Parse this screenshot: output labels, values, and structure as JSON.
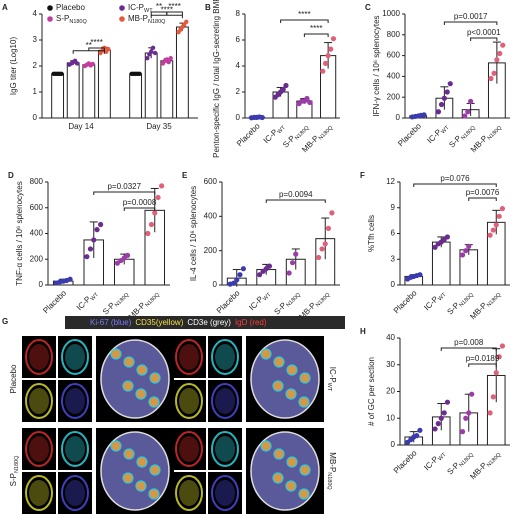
{
  "chart_data": [
    {
      "type": "grouped-bar",
      "panel": "A",
      "ylabel": "IgG titer (Log10)",
      "categories": [
        "Day 14",
        "Day 35"
      ],
      "ylim": [
        0,
        4
      ],
      "yticks": [
        0,
        1,
        2,
        3,
        4
      ],
      "series": [
        {
          "name": "Placebo",
          "sub": null,
          "color": "#111111",
          "values": [
            1.7,
            1.7
          ],
          "errors": [
            0.02,
            0.02
          ],
          "points": [
            [
              1.7,
              1.7,
              1.7,
              1.7,
              1.7
            ],
            [
              1.7,
              1.7,
              1.7,
              1.7,
              1.7
            ]
          ]
        },
        {
          "name": "IC-P",
          "sub": "WT",
          "color": "#6a2c91",
          "values": [
            2.12,
            2.5
          ],
          "errors": [
            0.08,
            0.2
          ],
          "points": [
            [
              2.05,
              2.1,
              2.15,
              2.2,
              2.1
            ],
            [
              2.3,
              2.45,
              2.55,
              2.7,
              2.5
            ]
          ]
        },
        {
          "name": "S-P",
          "sub": "N180Q",
          "color": "#c43ca0",
          "values": [
            2.05,
            2.2
          ],
          "errors": [
            0.05,
            0.08
          ],
          "points": [
            [
              2.0,
              2.05,
              2.1,
              2.02,
              2.08
            ],
            [
              2.1,
              2.2,
              2.25,
              2.15,
              2.3
            ]
          ]
        },
        {
          "name": "MB-P",
          "sub": "N180Q",
          "color": "#e8583a",
          "values": [
            2.6,
            3.5
          ],
          "errors": [
            0.12,
            0.15
          ],
          "points": [
            [
              2.5,
              2.6,
              2.7,
              2.55,
              2.65
            ],
            [
              3.3,
              3.4,
              3.5,
              3.6,
              3.7
            ]
          ]
        }
      ],
      "annotations": [
        "**",
        "****",
        "****",
        "**",
        "****"
      ]
    },
    {
      "type": "bar",
      "panel": "B",
      "ylabel": "Penton-specific IgG / total IgG-secreting BMPCs(%)",
      "categories": [
        "Placebo",
        "IC-P",
        "S-P",
        "MB-P"
      ],
      "category_subs": [
        null,
        "WT",
        "N180Q",
        "N180Q"
      ],
      "colors": [
        "#3b3bb0",
        "#6a2c91",
        "#9b3ca8",
        "#e0607a"
      ],
      "ylim": [
        0,
        8
      ],
      "yticks": [
        0,
        2,
        4,
        6,
        8
      ],
      "values": [
        0.05,
        2.0,
        1.3,
        4.8
      ],
      "errors": [
        0.03,
        0.35,
        0.2,
        1.0
      ],
      "points": [
        [
          0.02,
          0.05,
          0.05,
          0.08,
          0.04
        ],
        [
          1.6,
          1.8,
          2.0,
          2.2,
          2.5
        ],
        [
          1.1,
          1.3,
          1.3,
          1.5,
          1.2
        ],
        [
          3.6,
          4.2,
          4.8,
          5.3,
          6.1
        ]
      ],
      "annotations": [
        "****",
        "****"
      ]
    },
    {
      "type": "bar",
      "panel": "C",
      "ylabel": "IFN-γ cells / 10⁶ splenocytes",
      "categories": [
        "Placebo",
        "IC-P",
        "S-P",
        "MB-P"
      ],
      "category_subs": [
        null,
        "WT",
        "N180Q",
        "N180Q"
      ],
      "colors": [
        "#3b3bb0",
        "#6a2c91",
        "#9b3ca8",
        "#e0607a"
      ],
      "ylim": [
        0,
        1000
      ],
      "yticks": [
        0,
        200,
        400,
        600,
        800,
        1000
      ],
      "values": [
        20,
        190,
        80,
        530
      ],
      "errors": [
        8,
        110,
        60,
        200
      ],
      "points": [
        [
          10,
          15,
          20,
          25,
          30
        ],
        [
          60,
          130,
          190,
          250,
          330
        ],
        [
          20,
          60,
          160
        ],
        [
          380,
          430,
          560,
          620,
          700
        ]
      ],
      "annotations": [
        "p=0.0017",
        "p<0.0001"
      ]
    },
    {
      "type": "bar",
      "panel": "D",
      "ylabel": "TNF-α cells / 10⁶ splenocytes",
      "categories": [
        "Placebo",
        "IC-P",
        "S-P",
        "MB-P"
      ],
      "category_subs": [
        null,
        "WT",
        "N180Q",
        "N180Q"
      ],
      "colors": [
        "#3b3bb0",
        "#6a2c91",
        "#9b3ca8",
        "#e0607a"
      ],
      "ylim": [
        0,
        800
      ],
      "yticks": [
        0,
        200,
        400,
        600,
        800
      ],
      "values": [
        30,
        350,
        200,
        580
      ],
      "errors": [
        15,
        140,
        40,
        170
      ],
      "points": [
        [
          15,
          25,
          30,
          35,
          45
        ],
        [
          220,
          280,
          350,
          430,
          470
        ],
        [
          170,
          190,
          210,
          230
        ],
        [
          400,
          470,
          560,
          680,
          770
        ]
      ],
      "annotations": [
        "p=0.0327",
        "p=0.0008"
      ]
    },
    {
      "type": "bar",
      "panel": "E",
      "ylabel": "IL-4 cells / 10⁶ splenocytes",
      "categories": [
        "Placebo",
        "IC-P",
        "S-P",
        "MB-P"
      ],
      "category_subs": [
        null,
        "WT",
        "N180Q",
        "N180Q"
      ],
      "colors": [
        "#3b3bb0",
        "#6a2c91",
        "#9b3ca8",
        "#e0607a"
      ],
      "ylim": [
        0,
        600
      ],
      "yticks": [
        0,
        200,
        400,
        600
      ],
      "values": [
        40,
        90,
        150,
        270
      ],
      "errors": [
        50,
        30,
        60,
        120
      ],
      "points": [
        [
          5,
          10,
          30,
          60,
          95
        ],
        [
          60,
          80,
          95,
          110
        ],
        [
          70,
          130,
          180
        ],
        [
          160,
          210,
          240,
          330,
          420
        ]
      ],
      "annotations": [
        "p=0.0094"
      ]
    },
    {
      "type": "bar",
      "panel": "F",
      "ylabel": "%Tfh cells",
      "categories": [
        "Placebo",
        "IC-P",
        "S-P",
        "MB-P"
      ],
      "category_subs": [
        null,
        "WT",
        "N180Q",
        "N180Q"
      ],
      "colors": [
        "#3b3bb0",
        "#6a2c91",
        "#9b3ca8",
        "#e0607a"
      ],
      "ylim": [
        0,
        12
      ],
      "yticks": [
        0,
        3,
        6,
        9,
        12
      ],
      "values": [
        1.0,
        5.0,
        4.1,
        7.3
      ],
      "errors": [
        0.2,
        0.6,
        0.6,
        1.4
      ],
      "points": [
        [
          0.7,
          0.9,
          1.0,
          1.1,
          1.2
        ],
        [
          4.4,
          4.8,
          5.0,
          5.3,
          5.6
        ],
        [
          3.5,
          4.0,
          4.5
        ],
        [
          5.8,
          6.4,
          7.0,
          8.0,
          8.9
        ]
      ],
      "annotations": [
        "p=0.076",
        "p=0.0076"
      ]
    },
    {
      "type": "image",
      "panel": "G",
      "stain_labels": [
        {
          "text": "Ki-67 (blue)",
          "color": "#7b7bff"
        },
        {
          "text": "CD35(yellow)",
          "color": "#f2e14a"
        },
        {
          "text": "CD3e (grey)",
          "color": "#ffffff"
        },
        {
          "text": "IgD (red)",
          "color": "#ff3b3b"
        }
      ],
      "groups": [
        {
          "name": "Placebo",
          "sub": null
        },
        {
          "name": "IC-P",
          "sub": "WT"
        },
        {
          "name": "S-P",
          "sub": "N180Q"
        },
        {
          "name": "MB-P",
          "sub": "N180Q"
        }
      ]
    },
    {
      "type": "bar",
      "panel": "H",
      "ylabel": "# of GC per section",
      "categories": [
        "Placebo",
        "IC-P",
        "S-P",
        "MB-P"
      ],
      "category_subs": [
        null,
        "WT",
        "N180Q",
        "N180Q"
      ],
      "colors": [
        "#3b3bb0",
        "#6a2c91",
        "#9b3ca8",
        "#e0607a"
      ],
      "ylim": [
        0,
        40
      ],
      "yticks": [
        0,
        10,
        20,
        30,
        40
      ],
      "values": [
        3,
        10.5,
        12,
        26
      ],
      "errors": [
        2,
        5,
        7,
        10
      ],
      "points": [
        [
          1,
          2,
          3,
          3.5,
          5.5
        ],
        [
          6,
          8,
          10,
          12,
          16
        ],
        [
          5,
          10,
          12,
          19
        ],
        [
          12,
          18,
          27,
          33,
          37
        ]
      ],
      "annotations": [
        "p=0.008",
        "p=0.0189"
      ]
    }
  ]
}
